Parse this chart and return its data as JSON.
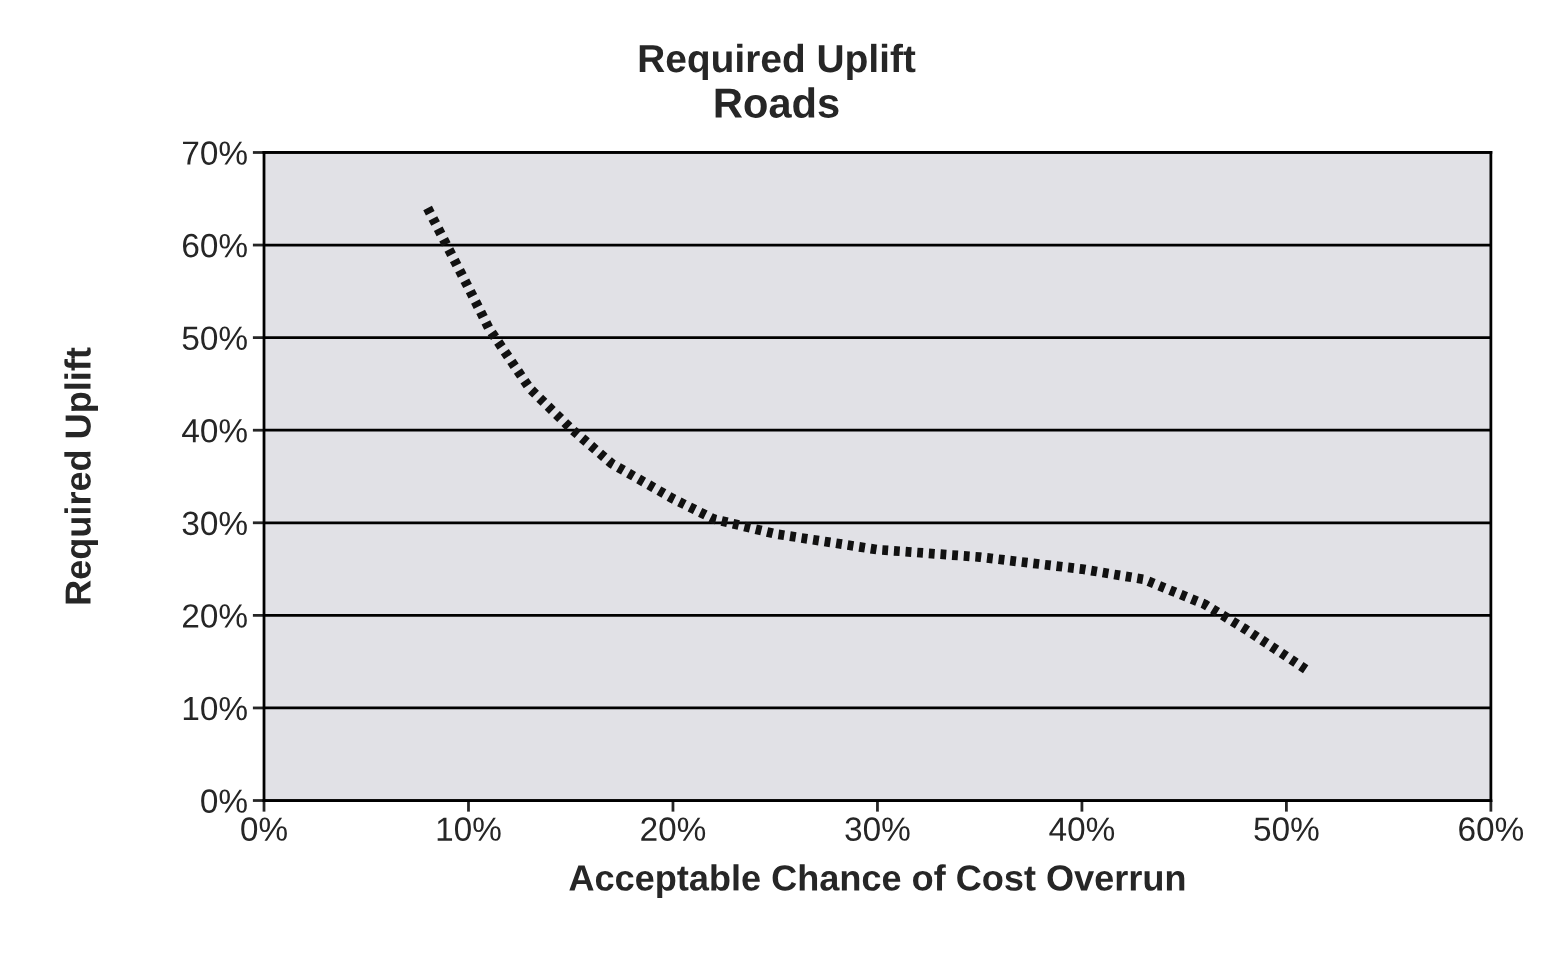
{
  "chart_data": {
    "type": "line",
    "title": "Required Uplift",
    "subtitle": "Roads",
    "xlabel": "Acceptable Chance of Cost Overrun",
    "ylabel": "Required Uplift",
    "series": [
      {
        "color": "#111111",
        "x": [
          8,
          10,
          11,
          13,
          15,
          17,
          20,
          22,
          25,
          30,
          35,
          40,
          43,
          46,
          48,
          51
        ],
        "values": [
          64,
          55.4,
          51,
          44.5,
          40.2,
          36.4,
          32.6,
          30.4,
          28.8,
          27.1,
          26.3,
          25,
          23.9,
          21.2,
          18.5,
          14.1
        ]
      }
    ],
    "xlim": [
      0,
      60
    ],
    "ylim": [
      0,
      70
    ],
    "xticks": [
      {
        "value": 0,
        "label": "0%"
      },
      {
        "value": 10,
        "label": "10%"
      },
      {
        "value": 20,
        "label": "20%"
      },
      {
        "value": 30,
        "label": "30%"
      },
      {
        "value": 40,
        "label": "40%"
      },
      {
        "value": 50,
        "label": "50%"
      },
      {
        "value": 60,
        "label": "60%"
      }
    ],
    "yticks": [
      {
        "value": 0,
        "label": "0%"
      },
      {
        "value": 10,
        "label": "10%"
      },
      {
        "value": 20,
        "label": "20%"
      },
      {
        "value": 30,
        "label": "30%"
      },
      {
        "value": 40,
        "label": "40%"
      },
      {
        "value": 50,
        "label": "50%"
      },
      {
        "value": 60,
        "label": "60%"
      },
      {
        "value": 70,
        "label": "70%"
      }
    ],
    "grid": "y",
    "line_style": "dotted",
    "marker": "none",
    "legend": false
  }
}
